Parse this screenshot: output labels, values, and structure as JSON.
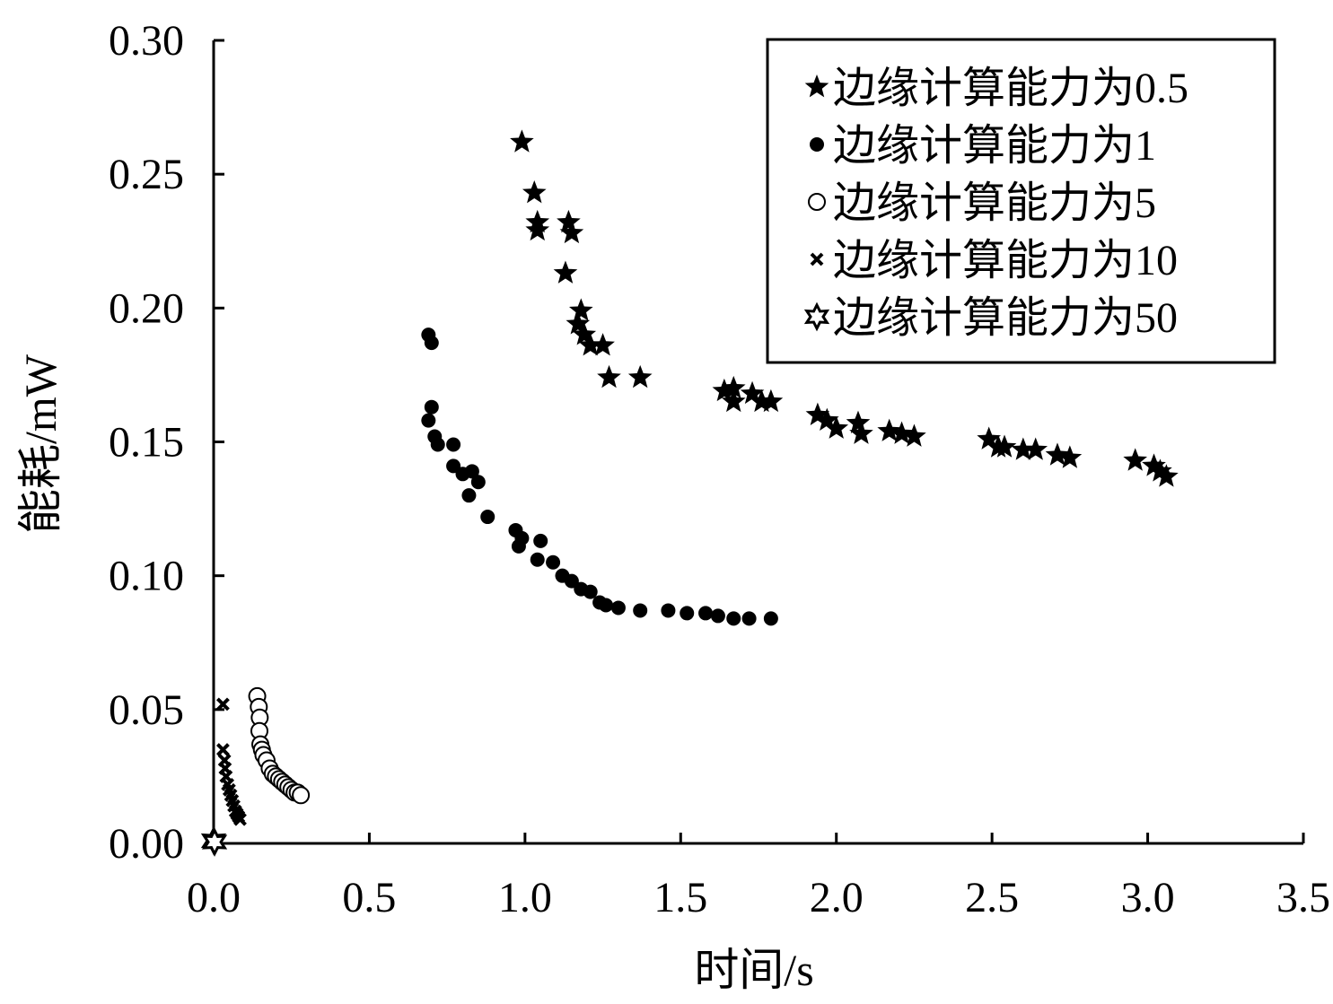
{
  "chart_data": {
    "type": "scatter",
    "title": "",
    "xlabel": "时间/s",
    "ylabel": "能耗/mW",
    "xlim": [
      0,
      3.5
    ],
    "ylim": [
      0,
      0.3
    ],
    "xticks": [
      "0.0",
      "0.5",
      "1.0",
      "1.5",
      "2.0",
      "2.5",
      "3.0",
      "3.5"
    ],
    "yticks": [
      "0.00",
      "0.05",
      "0.10",
      "0.15",
      "0.20",
      "0.25",
      "0.30"
    ],
    "legend_position": "top-right",
    "grid": false,
    "series": [
      {
        "name": "边缘计算能力为0.5",
        "marker": "star5",
        "points": [
          [
            0.99,
            0.262
          ],
          [
            1.03,
            0.243
          ],
          [
            1.04,
            0.232
          ],
          [
            1.04,
            0.229
          ],
          [
            1.14,
            0.232
          ],
          [
            1.15,
            0.228
          ],
          [
            1.13,
            0.213
          ],
          [
            1.18,
            0.199
          ],
          [
            1.17,
            0.194
          ],
          [
            1.19,
            0.19
          ],
          [
            1.21,
            0.186
          ],
          [
            1.25,
            0.186
          ],
          [
            1.27,
            0.174
          ],
          [
            1.37,
            0.174
          ],
          [
            1.64,
            0.169
          ],
          [
            1.67,
            0.17
          ],
          [
            1.67,
            0.165
          ],
          [
            1.73,
            0.168
          ],
          [
            1.76,
            0.165
          ],
          [
            1.79,
            0.165
          ],
          [
            1.94,
            0.16
          ],
          [
            1.97,
            0.158
          ],
          [
            2.0,
            0.155
          ],
          [
            2.07,
            0.157
          ],
          [
            2.08,
            0.153
          ],
          [
            2.17,
            0.154
          ],
          [
            2.21,
            0.153
          ],
          [
            2.25,
            0.152
          ],
          [
            2.49,
            0.151
          ],
          [
            2.52,
            0.148
          ],
          [
            2.54,
            0.148
          ],
          [
            2.6,
            0.147
          ],
          [
            2.64,
            0.147
          ],
          [
            2.71,
            0.145
          ],
          [
            2.75,
            0.144
          ],
          [
            2.96,
            0.143
          ],
          [
            3.02,
            0.141
          ],
          [
            3.04,
            0.139
          ],
          [
            3.06,
            0.137
          ]
        ]
      },
      {
        "name": "边缘计算能力为1",
        "marker": "dot",
        "points": [
          [
            0.69,
            0.19
          ],
          [
            0.7,
            0.187
          ],
          [
            0.7,
            0.163
          ],
          [
            0.69,
            0.158
          ],
          [
            0.71,
            0.152
          ],
          [
            0.72,
            0.149
          ],
          [
            0.77,
            0.149
          ],
          [
            0.77,
            0.141
          ],
          [
            0.8,
            0.138
          ],
          [
            0.83,
            0.139
          ],
          [
            0.85,
            0.135
          ],
          [
            0.82,
            0.13
          ],
          [
            0.88,
            0.122
          ],
          [
            0.97,
            0.117
          ],
          [
            0.98,
            0.111
          ],
          [
            0.99,
            0.114
          ],
          [
            1.05,
            0.113
          ],
          [
            1.04,
            0.106
          ],
          [
            1.09,
            0.105
          ],
          [
            1.12,
            0.1
          ],
          [
            1.15,
            0.098
          ],
          [
            1.18,
            0.095
          ],
          [
            1.21,
            0.094
          ],
          [
            1.24,
            0.09
          ],
          [
            1.26,
            0.089
          ],
          [
            1.3,
            0.088
          ],
          [
            1.37,
            0.087
          ],
          [
            1.46,
            0.087
          ],
          [
            1.52,
            0.086
          ],
          [
            1.58,
            0.086
          ],
          [
            1.62,
            0.085
          ],
          [
            1.67,
            0.084
          ],
          [
            1.72,
            0.084
          ],
          [
            1.79,
            0.084
          ]
        ]
      },
      {
        "name": "边缘计算能力为5",
        "marker": "circle",
        "points": [
          [
            0.14,
            0.055
          ],
          [
            0.145,
            0.051
          ],
          [
            0.148,
            0.047
          ],
          [
            0.147,
            0.042
          ],
          [
            0.15,
            0.037
          ],
          [
            0.155,
            0.035
          ],
          [
            0.16,
            0.033
          ],
          [
            0.17,
            0.031
          ],
          [
            0.18,
            0.028
          ],
          [
            0.19,
            0.026
          ],
          [
            0.2,
            0.025
          ],
          [
            0.21,
            0.024
          ],
          [
            0.22,
            0.023
          ],
          [
            0.23,
            0.022
          ],
          [
            0.24,
            0.021
          ],
          [
            0.25,
            0.02
          ],
          [
            0.26,
            0.019
          ],
          [
            0.27,
            0.019
          ],
          [
            0.28,
            0.018
          ]
        ]
      },
      {
        "name": "边缘计算能力为10",
        "marker": "cross",
        "points": [
          [
            0.03,
            0.052
          ],
          [
            0.03,
            0.035
          ],
          [
            0.035,
            0.031
          ],
          [
            0.037,
            0.028
          ],
          [
            0.04,
            0.025
          ],
          [
            0.045,
            0.022
          ],
          [
            0.05,
            0.02
          ],
          [
            0.055,
            0.018
          ],
          [
            0.06,
            0.016
          ],
          [
            0.065,
            0.014
          ],
          [
            0.07,
            0.012
          ],
          [
            0.075,
            0.011
          ],
          [
            0.08,
            0.01
          ],
          [
            0.085,
            0.009
          ]
        ]
      },
      {
        "name": "边缘计算能力为50",
        "marker": "star6",
        "points": [
          [
            0.0,
            0.001
          ],
          [
            0.003,
            0.0005
          ]
        ]
      }
    ]
  }
}
